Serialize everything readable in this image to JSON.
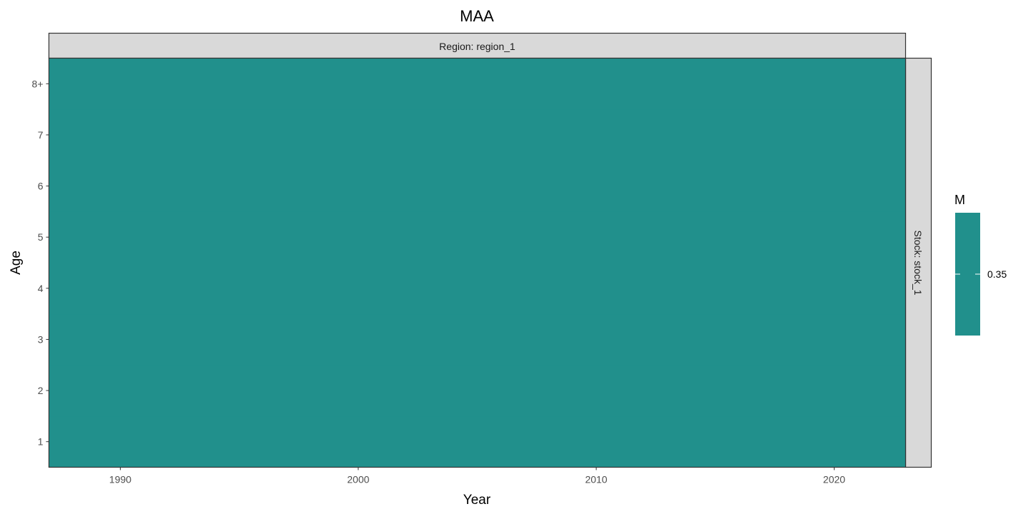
{
  "chart_data": {
    "type": "heatmap",
    "title": "MAA",
    "xlabel": "Year",
    "ylabel": "Age",
    "x_range": [
      1987,
      2023
    ],
    "x_ticks": [
      "1990",
      "2000",
      "2010",
      "2020"
    ],
    "y_categories": [
      "1",
      "2",
      "3",
      "4",
      "5",
      "6",
      "7",
      "8+"
    ],
    "facet_column": "Region: region_1",
    "facet_row": "Stock: stock_1",
    "fill_name": "M",
    "fill_value": 0.35,
    "fill_color": "#21908C",
    "legend_labels": [
      "0.35"
    ],
    "legend_position": "right",
    "grid": false
  }
}
